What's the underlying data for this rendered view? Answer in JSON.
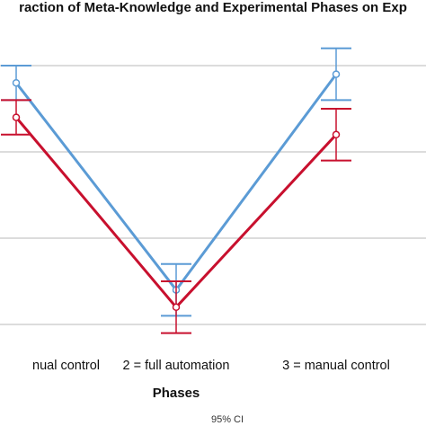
{
  "chart_data": {
    "type": "line",
    "title": "raction of Meta-Knowledge and Experimental Phases on Exp",
    "xlabel": "Phases",
    "ylabel": "",
    "categories": [
      "nual control",
      "2 = full automation",
      "3 = manual control"
    ],
    "ylim": [
      0,
      4
    ],
    "gridlines": [
      1,
      2,
      3,
      4
    ],
    "grid": true,
    "error_bars": "95% CI",
    "footnote": "95% CI",
    "series": [
      {
        "color": "#5b9bd5",
        "values": [
          3.8,
          1.4,
          3.9
        ],
        "ci_low": [
          3.6,
          1.1,
          3.6
        ],
        "ci_high": [
          4.0,
          1.7,
          4.2
        ]
      },
      {
        "color": "#c8102e",
        "values": [
          3.4,
          1.2,
          3.2
        ],
        "ci_low": [
          3.2,
          0.9,
          2.9
        ],
        "ci_high": [
          3.6,
          1.5,
          3.5
        ]
      }
    ]
  },
  "colors": {
    "grid": "#c8c8c8",
    "text": "#111111"
  }
}
